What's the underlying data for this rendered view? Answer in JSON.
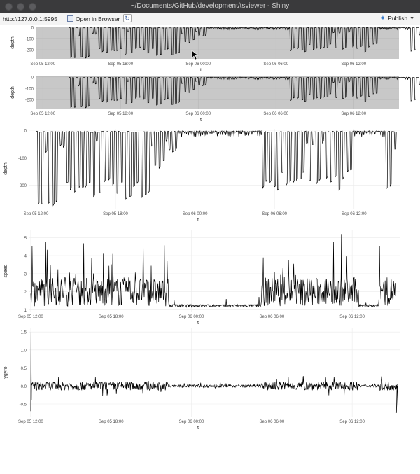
{
  "window": {
    "title": "~/Documents/GitHub/development/tsviewer - Shiny"
  },
  "toolbar": {
    "url": "http://127.0.0.1:5995",
    "open_label": "Open in Browser",
    "publish_label": "Publish"
  },
  "icons": {
    "open": "document-icon",
    "refresh": "refresh-icon",
    "publish": "publish-icon"
  },
  "chart_data": [
    {
      "type": "line",
      "name": "depth-overview-1",
      "ylabel": "depth",
      "xlabel": "t",
      "xtick_labels": [
        "Sep 05 12:00",
        "Sep 05 18:00",
        "Sep 06 00:00",
        "Sep 06 06:00",
        "Sep 06 12:00"
      ],
      "ytick_labels": [
        "0",
        "-100",
        "-200"
      ],
      "ylim": [
        -280,
        5
      ],
      "x_range_hours": [
        -2.5,
        25.5
      ],
      "background": "#c8c8c8"
    },
    {
      "type": "line",
      "name": "depth-overview-2",
      "ylabel": "depth",
      "xlabel": "t",
      "xtick_labels": [
        "Sep 05 12:00",
        "Sep 05 18:00",
        "Sep 06 00:00",
        "Sep 06 06:00",
        "Sep 06 12:00"
      ],
      "ytick_labels": [
        "0",
        "-100",
        "-200"
      ],
      "ylim": [
        -280,
        5
      ],
      "x_range_hours": [
        -2.5,
        25.5
      ],
      "background": "#c8c8c8"
    },
    {
      "type": "line",
      "name": "depth",
      "ylabel": "depth",
      "xlabel": "t",
      "xtick_labels": [
        "Sep 05 12:00",
        "Sep 05 18:00",
        "Sep 06 00:00",
        "Sep 06 06:00",
        "Sep 06 12:00"
      ],
      "ytick_labels": [
        "0",
        "-100",
        "-200"
      ],
      "ylim": [
        -285,
        5
      ],
      "x_range_hours": [
        -0.5,
        27.5
      ],
      "background": "#ffffff"
    },
    {
      "type": "line",
      "name": "speed",
      "ylabel": "speed",
      "xlabel": "t",
      "xtick_labels": [
        "Sep 05 12:00",
        "Sep 05 18:00",
        "Sep 06 00:00",
        "Sep 06 06:00",
        "Sep 06 12:00"
      ],
      "ytick_labels": [
        "5",
        "4",
        "3",
        "2",
        "1"
      ],
      "ylim": [
        0.9,
        5.4
      ],
      "x_range_hours": [
        -0.1,
        27.6
      ],
      "background": "#ffffff"
    },
    {
      "type": "line",
      "name": "ygyro",
      "ylabel": "ygyro",
      "xlabel": "t",
      "xtick_labels": [
        "Sep 05 12:00",
        "Sep 05 18:00",
        "Sep 06 00:00",
        "Sep 06 06:00",
        "Sep 06 12:00"
      ],
      "ytick_labels": [
        "1.5",
        "1.0",
        "0.5",
        "0.0",
        "-0.5"
      ],
      "ylim": [
        -0.85,
        1.6
      ],
      "x_range_hours": [
        -0.1,
        27.6
      ],
      "background": "#ffffff"
    }
  ]
}
